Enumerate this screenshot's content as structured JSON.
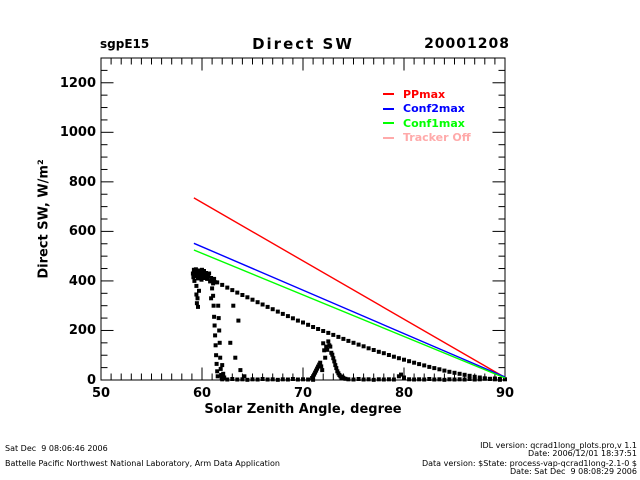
{
  "header": {
    "site": "sgpE15",
    "title": "Direct SW",
    "date": "20001208"
  },
  "footer": {
    "left_line1": "Sat Dec  9 08:06:46 2006",
    "left_line2": "Battelle Pacific Northwest National Laboratory, Arm Data Application",
    "right_line1": "IDL version: qcrad1long_plots.pro,v 1.1",
    "right_line2": "Date: 2006/12/01 18:37:51",
    "right_line3": "Data version: $State: process-vap-qcrad1long-2.1-0 $",
    "right_line4": "Date: Sat Dec  9 08:08:29 2006"
  },
  "chart_data": {
    "type": "scatter",
    "title": "Direct SW",
    "xlabel": "Solar Zenith Angle, degree",
    "ylabel": "Direct SW, W/m²",
    "xlim": [
      50,
      90
    ],
    "ylim": [
      0,
      1300
    ],
    "xticks": [
      50,
      60,
      70,
      80,
      90
    ],
    "yticks": [
      0,
      200,
      400,
      600,
      800,
      1000,
      1200
    ],
    "x_minor_step": 1,
    "y_minor_step": 50,
    "grid": false,
    "legend_position": "upper-right-inside",
    "legend": [
      {
        "label": "PPmax",
        "color": "#ff0000"
      },
      {
        "label": "Conf2max",
        "color": "#0000ff"
      },
      {
        "label": "Conf1max",
        "color": "#00ff00"
      },
      {
        "label": "Tracker Off",
        "color": "#ffaaaa"
      }
    ],
    "lines": [
      {
        "name": "PPmax",
        "color": "#ff0000",
        "points": [
          [
            59.2,
            735
          ],
          [
            90,
            10
          ]
        ]
      },
      {
        "name": "Conf2max",
        "color": "#0000ff",
        "points": [
          [
            59.2,
            552
          ],
          [
            90,
            12
          ]
        ]
      },
      {
        "name": "Conf1max",
        "color": "#00ff00",
        "points": [
          [
            59.2,
            525
          ],
          [
            90,
            8
          ]
        ]
      }
    ],
    "scatter": {
      "name": "measured-direct-sw",
      "color": "#000000",
      "points": [
        [
          59.5,
          436
        ],
        [
          60,
          426
        ],
        [
          60.5,
          415
        ],
        [
          61,
          404
        ],
        [
          61.5,
          394
        ],
        [
          62,
          384
        ],
        [
          62.5,
          373
        ],
        [
          63,
          363
        ],
        [
          63.5,
          353
        ],
        [
          64,
          343
        ],
        [
          64.5,
          334
        ],
        [
          65,
          324
        ],
        [
          65.5,
          314
        ],
        [
          66,
          305
        ],
        [
          66.5,
          295
        ],
        [
          67,
          286
        ],
        [
          67.5,
          276
        ],
        [
          68,
          267
        ],
        [
          68.5,
          258
        ],
        [
          69,
          249
        ],
        [
          69.5,
          240
        ],
        [
          70,
          232
        ],
        [
          70.5,
          223
        ],
        [
          71,
          214
        ],
        [
          71.5,
          206
        ],
        [
          72,
          198
        ],
        [
          72.5,
          190
        ],
        [
          73,
          182
        ],
        [
          73.5,
          174
        ],
        [
          74,
          166
        ],
        [
          74.5,
          158
        ],
        [
          75,
          150
        ],
        [
          75.5,
          143
        ],
        [
          76,
          136
        ],
        [
          76.5,
          128
        ],
        [
          77,
          121
        ],
        [
          77.5,
          114
        ],
        [
          78,
          108
        ],
        [
          78.5,
          101
        ],
        [
          79,
          94
        ],
        [
          79.5,
          88
        ],
        [
          80,
          82
        ],
        [
          80.5,
          76
        ],
        [
          81,
          70
        ],
        [
          81.5,
          64
        ],
        [
          82,
          59
        ],
        [
          82.5,
          53
        ],
        [
          83,
          48
        ],
        [
          83.5,
          43
        ],
        [
          84,
          38
        ],
        [
          84.5,
          33
        ],
        [
          85,
          29
        ],
        [
          85.5,
          25
        ],
        [
          86,
          21
        ],
        [
          86.5,
          17
        ],
        [
          87,
          13
        ],
        [
          87.5,
          10
        ],
        [
          88,
          7
        ],
        [
          88.5,
          5
        ],
        [
          89,
          3
        ],
        [
          89.5,
          1
        ],
        [
          59.1,
          430
        ],
        [
          59.15,
          415
        ],
        [
          59.2,
          445
        ],
        [
          59.25,
          400
        ],
        [
          59.3,
          435
        ],
        [
          59.35,
          420
        ],
        [
          59.4,
          447
        ],
        [
          59.45,
          380
        ],
        [
          59.5,
          425
        ],
        [
          59.55,
          440
        ],
        [
          59.6,
          410
        ],
        [
          59.65,
          432
        ],
        [
          59.7,
          360
        ],
        [
          59.75,
          442
        ],
        [
          59.8,
          418
        ],
        [
          59.85,
          428
        ],
        [
          59.9,
          438
        ],
        [
          59.95,
          405
        ],
        [
          60,
          445
        ],
        [
          60.05,
          422
        ],
        [
          60.1,
          435
        ],
        [
          60.15,
          412
        ],
        [
          60.2,
          440
        ],
        [
          60.3,
          426
        ],
        [
          60.4,
          432
        ],
        [
          60.5,
          408
        ],
        [
          60.6,
          420
        ],
        [
          60.7,
          430
        ],
        [
          60.8,
          398
        ],
        [
          60.9,
          412
        ],
        [
          61,
          402
        ],
        [
          61.1,
          390
        ],
        [
          61.2,
          408
        ],
        [
          61.3,
          395
        ],
        [
          59.45,
          345
        ],
        [
          59.5,
          310
        ],
        [
          59.55,
          330
        ],
        [
          59.6,
          295
        ],
        [
          60.9,
          330
        ],
        [
          61,
          370
        ],
        [
          61.1,
          340
        ],
        [
          61.15,
          300
        ],
        [
          61.2,
          255
        ],
        [
          61.25,
          220
        ],
        [
          61.3,
          180
        ],
        [
          61.35,
          140
        ],
        [
          61.4,
          100
        ],
        [
          61.45,
          65
        ],
        [
          61.5,
          35
        ],
        [
          61.55,
          15
        ],
        [
          61.6,
          300
        ],
        [
          61.65,
          250
        ],
        [
          61.7,
          200
        ],
        [
          61.75,
          150
        ],
        [
          61.8,
          90
        ],
        [
          61.85,
          45
        ],
        [
          61.9,
          20
        ],
        [
          61.95,
          8
        ],
        [
          62,
          60
        ],
        [
          62.1,
          25
        ],
        [
          62.2,
          10
        ],
        [
          62.8,
          150
        ],
        [
          63.1,
          300
        ],
        [
          63.3,
          90
        ],
        [
          63.6,
          240
        ],
        [
          63.8,
          40
        ],
        [
          64.2,
          15
        ],
        [
          70.9,
          8
        ],
        [
          71,
          15
        ],
        [
          71.1,
          22
        ],
        [
          71.2,
          30
        ],
        [
          71.3,
          38
        ],
        [
          71.4,
          46
        ],
        [
          71.5,
          54
        ],
        [
          71.6,
          62
        ],
        [
          71.7,
          70
        ],
        [
          71.8,
          55
        ],
        [
          71.9,
          40
        ],
        [
          72,
          148
        ],
        [
          72.1,
          120
        ],
        [
          72.2,
          90
        ],
        [
          72.3,
          135
        ],
        [
          72.4,
          122
        ],
        [
          72.5,
          156
        ],
        [
          72.6,
          140
        ],
        [
          72.7,
          135
        ],
        [
          72.8,
          110
        ],
        [
          72.9,
          102
        ],
        [
          73,
          88
        ],
        [
          73.1,
          75
        ],
        [
          73.2,
          60
        ],
        [
          73.3,
          48
        ],
        [
          73.4,
          35
        ],
        [
          73.5,
          27
        ],
        [
          73.6,
          20
        ],
        [
          73.7,
          15
        ],
        [
          73.8,
          10
        ],
        [
          73.9,
          13
        ],
        [
          74,
          8
        ],
        [
          74.2,
          5
        ],
        [
          62,
          3
        ],
        [
          62.5,
          2
        ],
        [
          63,
          4
        ],
        [
          63.5,
          2
        ],
        [
          64,
          3
        ],
        [
          64.5,
          1
        ],
        [
          65,
          3
        ],
        [
          65.5,
          2
        ],
        [
          66,
          4
        ],
        [
          66.5,
          2
        ],
        [
          67,
          3
        ],
        [
          67.5,
          1
        ],
        [
          68,
          3
        ],
        [
          68.5,
          2
        ],
        [
          69,
          4
        ],
        [
          69.5,
          2
        ],
        [
          70,
          3
        ],
        [
          70.5,
          2
        ],
        [
          71,
          1
        ],
        [
          74.5,
          3
        ],
        [
          75,
          2
        ],
        [
          75.5,
          4
        ],
        [
          76,
          2
        ],
        [
          76.5,
          3
        ],
        [
          77,
          1
        ],
        [
          77.5,
          3
        ],
        [
          78,
          2
        ],
        [
          78.5,
          3
        ],
        [
          79,
          2
        ],
        [
          79.5,
          15
        ],
        [
          79.7,
          22
        ],
        [
          80,
          10
        ],
        [
          80.5,
          3
        ],
        [
          81,
          2
        ],
        [
          81.5,
          3
        ],
        [
          82,
          2
        ],
        [
          82.5,
          4
        ],
        [
          83,
          2
        ],
        [
          83.5,
          3
        ],
        [
          84,
          1
        ],
        [
          84.5,
          3
        ],
        [
          85,
          2
        ],
        [
          85.5,
          3
        ],
        [
          86,
          2
        ],
        [
          86.5,
          4
        ],
        [
          87,
          2
        ],
        [
          87.5,
          3
        ],
        [
          88,
          5
        ],
        [
          88.5,
          4
        ],
        [
          89,
          6
        ],
        [
          89.5,
          4
        ],
        [
          90,
          3
        ]
      ]
    }
  }
}
